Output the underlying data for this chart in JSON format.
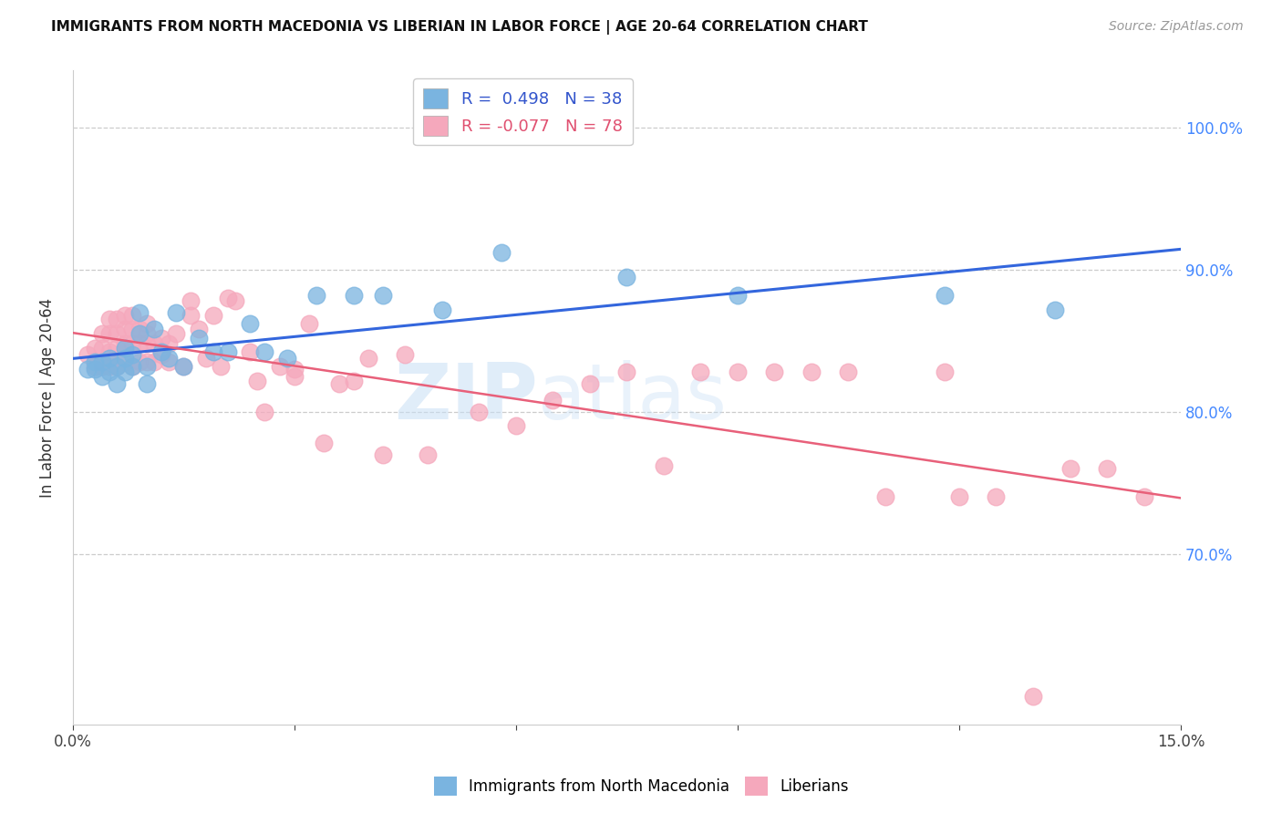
{
  "title": "IMMIGRANTS FROM NORTH MACEDONIA VS LIBERIAN IN LABOR FORCE | AGE 20-64 CORRELATION CHART",
  "source": "Source: ZipAtlas.com",
  "ylabel": "In Labor Force | Age 20-64",
  "xlim": [
    0.0,
    0.15
  ],
  "ylim": [
    0.58,
    1.04
  ],
  "xticks": [
    0.0,
    0.03,
    0.06,
    0.09,
    0.12,
    0.15
  ],
  "xticklabels": [
    "0.0%",
    "",
    "",
    "",
    "",
    "15.0%"
  ],
  "yticks": [
    0.7,
    0.8,
    0.9,
    1.0
  ],
  "right_yticklabels": [
    "70.0%",
    "80.0%",
    "90.0%",
    "100.0%"
  ],
  "blue_R": "0.498",
  "blue_N": "38",
  "pink_R": "-0.077",
  "pink_N": "78",
  "blue_color": "#7ab4e0",
  "pink_color": "#f5a8bc",
  "blue_line_color": "#3366dd",
  "pink_line_color": "#e8607a",
  "watermark_text": "ZIP",
  "watermark_text2": "atlas",
  "legend_label_blue": "Immigrants from North Macedonia",
  "legend_label_pink": "Liberians",
  "blue_scatter_x": [
    0.002,
    0.003,
    0.003,
    0.004,
    0.004,
    0.005,
    0.005,
    0.006,
    0.006,
    0.007,
    0.007,
    0.007,
    0.008,
    0.008,
    0.009,
    0.009,
    0.01,
    0.01,
    0.011,
    0.012,
    0.013,
    0.014,
    0.015,
    0.017,
    0.019,
    0.021,
    0.024,
    0.026,
    0.029,
    0.033,
    0.038,
    0.042,
    0.05,
    0.058,
    0.075,
    0.09,
    0.118,
    0.133
  ],
  "blue_scatter_y": [
    0.83,
    0.835,
    0.83,
    0.825,
    0.835,
    0.828,
    0.838,
    0.82,
    0.832,
    0.838,
    0.845,
    0.828,
    0.832,
    0.84,
    0.855,
    0.87,
    0.82,
    0.832,
    0.858,
    0.842,
    0.838,
    0.87,
    0.832,
    0.852,
    0.842,
    0.842,
    0.862,
    0.842,
    0.838,
    0.882,
    0.882,
    0.882,
    0.872,
    0.912,
    0.895,
    0.882,
    0.882,
    0.872
  ],
  "pink_scatter_x": [
    0.002,
    0.003,
    0.003,
    0.004,
    0.004,
    0.004,
    0.005,
    0.005,
    0.005,
    0.005,
    0.006,
    0.006,
    0.006,
    0.006,
    0.007,
    0.007,
    0.007,
    0.007,
    0.008,
    0.008,
    0.008,
    0.008,
    0.009,
    0.009,
    0.009,
    0.01,
    0.01,
    0.01,
    0.01,
    0.011,
    0.011,
    0.012,
    0.012,
    0.013,
    0.013,
    0.014,
    0.015,
    0.016,
    0.016,
    0.017,
    0.018,
    0.019,
    0.02,
    0.021,
    0.022,
    0.024,
    0.025,
    0.026,
    0.028,
    0.03,
    0.03,
    0.032,
    0.034,
    0.036,
    0.038,
    0.04,
    0.042,
    0.045,
    0.048,
    0.055,
    0.06,
    0.065,
    0.07,
    0.075,
    0.08,
    0.085,
    0.09,
    0.095,
    0.1,
    0.105,
    0.11,
    0.118,
    0.12,
    0.125,
    0.13,
    0.135,
    0.14,
    0.145
  ],
  "pink_scatter_y": [
    0.84,
    0.832,
    0.845,
    0.832,
    0.845,
    0.855,
    0.832,
    0.842,
    0.855,
    0.865,
    0.832,
    0.845,
    0.855,
    0.865,
    0.835,
    0.848,
    0.858,
    0.868,
    0.832,
    0.848,
    0.858,
    0.868,
    0.835,
    0.848,
    0.858,
    0.835,
    0.848,
    0.855,
    0.862,
    0.835,
    0.848,
    0.84,
    0.852,
    0.835,
    0.848,
    0.855,
    0.832,
    0.868,
    0.878,
    0.858,
    0.838,
    0.868,
    0.832,
    0.88,
    0.878,
    0.842,
    0.822,
    0.8,
    0.832,
    0.83,
    0.825,
    0.862,
    0.778,
    0.82,
    0.822,
    0.838,
    0.77,
    0.84,
    0.77,
    0.8,
    0.79,
    0.808,
    0.82,
    0.828,
    0.762,
    0.828,
    0.828,
    0.828,
    0.828,
    0.828,
    0.74,
    0.828,
    0.74,
    0.74,
    0.6,
    0.76,
    0.76,
    0.74
  ]
}
